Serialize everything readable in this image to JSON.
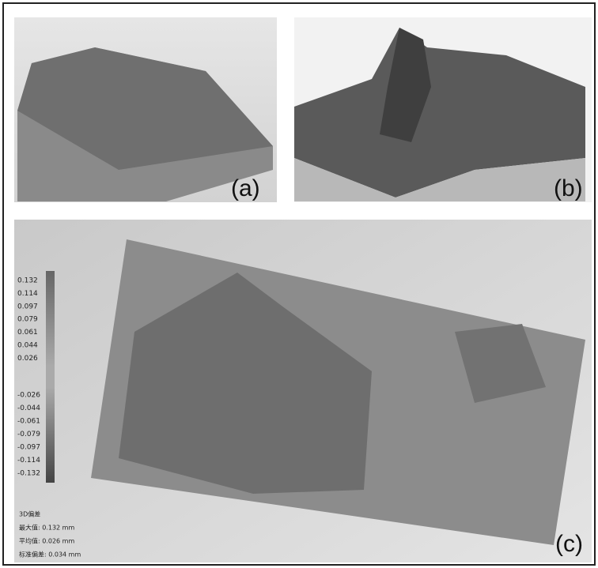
{
  "panels": [
    {
      "label": "(a)"
    },
    {
      "label": "(b)"
    },
    {
      "label": "(c)"
    }
  ],
  "color_scale": {
    "labels": [
      "0.132",
      "0.114",
      "0.097",
      "0.079",
      "0.061",
      "0.044",
      "0.026",
      "-0.026",
      "-0.044",
      "-0.061",
      "-0.079",
      "-0.097",
      "-0.114",
      "-0.132"
    ]
  },
  "stats": {
    "title": "3D偏差",
    "lines": [
      "最大值: 0.132 mm",
      "平均值: 0.026 mm",
      "标准偏差: 0.034 mm"
    ]
  }
}
